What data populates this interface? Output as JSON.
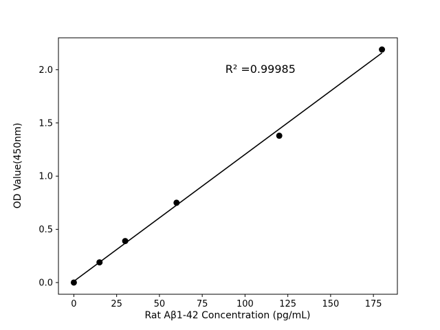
{
  "chart_data": {
    "type": "scatter",
    "title": "",
    "xlabel": "Rat Aβ1-42 Concentration (pg/mL)",
    "ylabel": "OD Value(450nm)",
    "x": [
      0,
      15,
      30,
      60,
      120,
      180
    ],
    "y": [
      0.0,
      0.19,
      0.39,
      0.75,
      1.38,
      2.19
    ],
    "fit_line": {
      "x": [
        0,
        180
      ],
      "y": [
        0.012,
        2.158
      ]
    },
    "annotation": {
      "text": "R² =0.99985",
      "x": 109,
      "y": 1.97
    },
    "xticks": [
      0,
      25,
      50,
      75,
      100,
      125,
      150,
      175
    ],
    "xtick_labels": [
      "0",
      "25",
      "50",
      "75",
      "100",
      "125",
      "150",
      "175"
    ],
    "yticks": [
      0.0,
      0.5,
      1.0,
      1.5,
      2.0
    ],
    "ytick_labels": [
      "0.0",
      "0.5",
      "1.0",
      "1.5",
      "2.0"
    ],
    "xlim": [
      -9,
      189
    ],
    "ylim": [
      -0.11,
      2.3
    ],
    "grid": false,
    "legend": null,
    "background_color": "#ffffff",
    "point_color": "#000000",
    "line_color": "#000000",
    "marker_size_px": 9
  }
}
